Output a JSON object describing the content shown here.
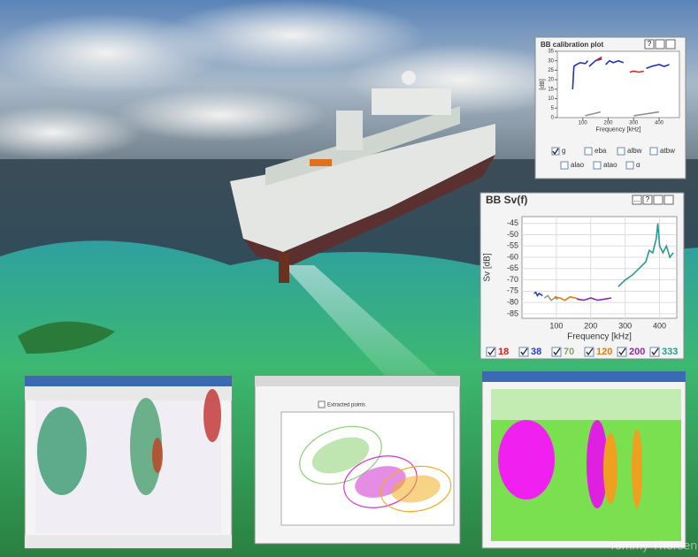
{
  "calibration": {
    "type": "line",
    "title": "BB calibration plot",
    "buttons": [
      "?"
    ],
    "ylabel": "[dB]",
    "xlabel": "Frequency [kHz]",
    "xlim": [
      0,
      480
    ],
    "xticks": [
      100,
      200,
      300,
      400
    ],
    "ylim": [
      0,
      35
    ],
    "yticks": [
      0,
      5,
      10,
      15,
      20,
      25,
      30,
      35
    ],
    "series": [
      {
        "color": "#2030c0",
        "x": [
          60,
          65,
          75,
          90,
          110,
          120,
          null,
          125,
          150,
          175,
          null,
          190,
          205,
          220,
          240,
          260,
          null,
          350,
          370,
          400,
          420,
          440
        ],
        "values": [
          15,
          27,
          28,
          29,
          28.5,
          30,
          null,
          27,
          30,
          31,
          null,
          28,
          30,
          29,
          30,
          29,
          null,
          26,
          27,
          28,
          27,
          28
        ]
      },
      {
        "color": "#e02020",
        "x": [
          150,
          175,
          null,
          285,
          300,
          320,
          340
        ],
        "values": [
          30,
          32,
          null,
          24,
          24.5,
          24,
          24.5
        ]
      },
      {
        "color": "#909090",
        "x": [
          110,
          170,
          null,
          300,
          400
        ],
        "values": [
          1,
          3,
          null,
          1,
          3
        ]
      }
    ],
    "checkboxes": [
      {
        "label": "g",
        "checked": true
      },
      {
        "label": "eba",
        "checked": false
      },
      {
        "label": "albw",
        "checked": false
      },
      {
        "label": "atbw",
        "checked": false
      },
      {
        "label": "alao",
        "checked": false
      },
      {
        "label": "atao",
        "checked": false
      },
      {
        "label": "α",
        "checked": false
      }
    ]
  },
  "sv": {
    "type": "line",
    "title": "BB Sv(f)",
    "buttons": [
      "...",
      "?"
    ],
    "ylabel": "Sv [dB]",
    "xlabel": "Frequency [kHz]",
    "xlim": [
      0,
      450
    ],
    "xticks": [
      100,
      200,
      300,
      400
    ],
    "ylim": [
      -87,
      -42
    ],
    "yticks": [
      -45,
      -50,
      -55,
      -60,
      -65,
      -70,
      -75,
      -80,
      -85
    ],
    "grid": true,
    "series": [
      {
        "name": "18",
        "color": "#d62020",
        "x": [],
        "values": []
      },
      {
        "name": "38",
        "color": "#2a3cc8",
        "x": [
          35,
          40,
          45,
          50,
          55,
          60
        ],
        "values": [
          -76,
          -75.5,
          -77,
          -76,
          -76.5,
          -77
        ]
      },
      {
        "name": "70",
        "color": "#8aa070",
        "x": [
          65,
          75,
          85,
          95,
          105
        ],
        "values": [
          -78,
          -77,
          -79,
          -78,
          -78.5
        ]
      },
      {
        "name": "120",
        "color": "#e07a10",
        "x": [
          95,
          110,
          125,
          140,
          155,
          165
        ],
        "values": [
          -77.5,
          -78,
          -79,
          -77.5,
          -78,
          -78.5
        ]
      },
      {
        "name": "200",
        "color": "#8a2aa8",
        "x": [
          160,
          180,
          200,
          220,
          240,
          260
        ],
        "values": [
          -78.5,
          -79,
          -78,
          -79,
          -78.5,
          -78
        ]
      },
      {
        "name": "333",
        "color": "#2a9a90",
        "x": [
          280,
          300,
          320,
          340,
          360,
          370,
          380,
          390,
          395,
          400,
          410,
          420,
          430,
          440
        ],
        "values": [
          -73,
          -70,
          -68,
          -65,
          -62,
          -57,
          -58,
          -52,
          -45,
          -55,
          -58,
          -55,
          -60,
          -58
        ]
      }
    ]
  },
  "scatter_window": {
    "checkbox": "Extracted points"
  },
  "watermark": "Tommy Thorsen"
}
